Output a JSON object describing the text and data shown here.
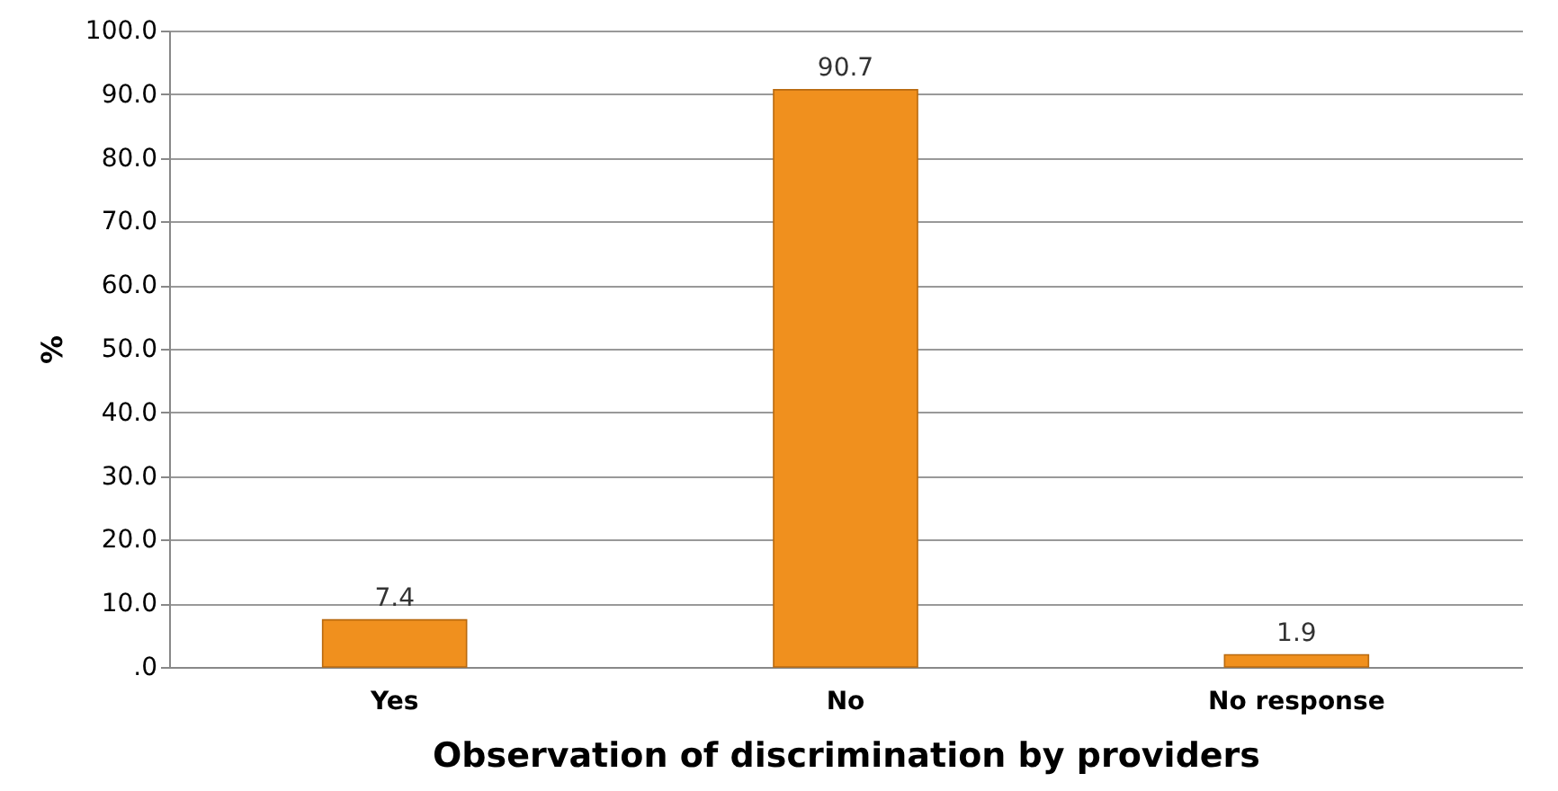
{
  "chart_data": {
    "type": "bar",
    "xlabel": "Observation of discrimination by providers",
    "ylabel": "%",
    "categories": [
      "Yes",
      "No",
      "No response"
    ],
    "values": [
      7.4,
      90.7,
      1.9
    ],
    "value_labels": [
      "7.4",
      "90.7",
      "1.9"
    ],
    "color": "#f0901e",
    "ylim": [
      0,
      100
    ],
    "yticks": [
      {
        "value": 0,
        "label": ".0"
      },
      {
        "value": 10,
        "label": "10.0"
      },
      {
        "value": 20,
        "label": "20.0"
      },
      {
        "value": 30,
        "label": "30.0"
      },
      {
        "value": 40,
        "label": "40.0"
      },
      {
        "value": 50,
        "label": "50.0"
      },
      {
        "value": 60,
        "label": "60.0"
      },
      {
        "value": 70,
        "label": "70.0"
      },
      {
        "value": 80,
        "label": "80.0"
      },
      {
        "value": 90,
        "label": "90.0"
      },
      {
        "value": 100,
        "label": "100.0"
      }
    ],
    "grid": "y"
  }
}
